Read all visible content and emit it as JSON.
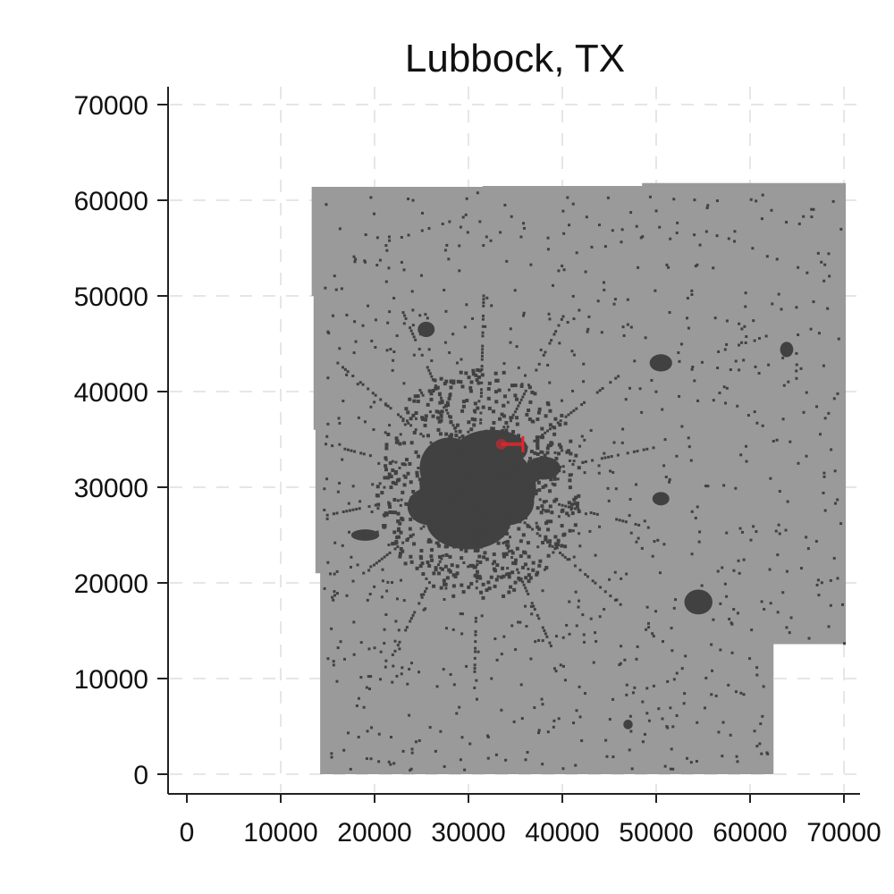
{
  "title": "Lubbock, TX",
  "axes": {
    "x": {
      "ticks": [
        0,
        10000,
        20000,
        30000,
        40000,
        50000,
        60000,
        70000
      ]
    },
    "y": {
      "ticks": [
        0,
        10000,
        20000,
        30000,
        40000,
        50000,
        60000,
        70000
      ]
    }
  },
  "map": {
    "region_color": "#9a9a9a",
    "urban_color": "#414141",
    "highlight_color": "#e8242b",
    "extent_polygon": [
      [
        13300,
        61400
      ],
      [
        31500,
        61400
      ],
      [
        31500,
        61500
      ],
      [
        48500,
        61500
      ],
      [
        48500,
        61800
      ],
      [
        70200,
        61800
      ],
      [
        70200,
        13600
      ],
      [
        62500,
        13600
      ],
      [
        62500,
        0
      ],
      [
        14200,
        0
      ],
      [
        14200,
        21000
      ],
      [
        13700,
        21000
      ],
      [
        13700,
        36000
      ],
      [
        13500,
        36000
      ],
      [
        13500,
        50000
      ],
      [
        13300,
        50000
      ]
    ],
    "urban_blobs": [
      {
        "x": 31000,
        "y": 30000,
        "rx": 6200,
        "ry": 4800
      },
      {
        "x": 30000,
        "y": 26500,
        "rx": 4500,
        "ry": 3000
      },
      {
        "x": 32500,
        "y": 34000,
        "rx": 3800,
        "ry": 2000
      },
      {
        "x": 28000,
        "y": 32000,
        "rx": 3200,
        "ry": 3200
      },
      {
        "x": 34000,
        "y": 28500,
        "rx": 3000,
        "ry": 2500
      },
      {
        "x": 26000,
        "y": 28000,
        "rx": 2500,
        "ry": 2000
      },
      {
        "x": 54500,
        "y": 18000,
        "rx": 1500,
        "ry": 1300
      },
      {
        "x": 50500,
        "y": 43000,
        "rx": 1200,
        "ry": 900
      },
      {
        "x": 25500,
        "y": 46500,
        "rx": 900,
        "ry": 800
      },
      {
        "x": 63900,
        "y": 44400,
        "rx": 700,
        "ry": 800
      },
      {
        "x": 50500,
        "y": 28800,
        "rx": 900,
        "ry": 700
      },
      {
        "x": 47000,
        "y": 5200,
        "rx": 500,
        "ry": 500
      },
      {
        "x": 19000,
        "y": 25000,
        "rx": 1500,
        "ry": 600
      },
      {
        "x": 38000,
        "y": 32000,
        "rx": 1800,
        "ry": 1200
      }
    ],
    "highlight_segment": {
      "x1": 33500,
      "y1": 34500,
      "x2": 35800,
      "y2": 34500
    }
  }
}
